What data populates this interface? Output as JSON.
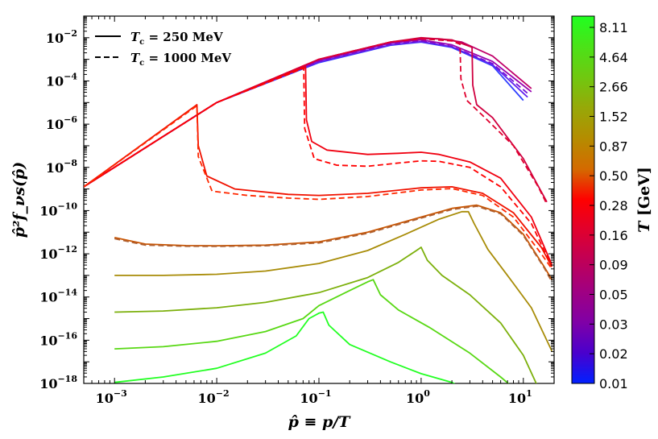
{
  "chart_data": {
    "type": "line",
    "x_scale": "log",
    "y_scale": "log",
    "xlim": [
      0.0005,
      20
    ],
    "ylim": [
      1e-18,
      0.1
    ],
    "xlabel": "p̂ ≡ p/T",
    "ylabel": "p̂²f_νs(p̂)",
    "x_ticks": [
      {
        "exp": -3,
        "label": "10",
        "sup": "−3"
      },
      {
        "exp": -2,
        "label": "10",
        "sup": "−2"
      },
      {
        "exp": -1,
        "label": "10",
        "sup": "−1"
      },
      {
        "exp": 0,
        "label": "10",
        "sup": "0"
      },
      {
        "exp": 1,
        "label": "10",
        "sup": "1"
      }
    ],
    "y_ticks": [
      {
        "exp": -2,
        "label": "10",
        "sup": "−2"
      },
      {
        "exp": -4,
        "label": "10",
        "sup": "−4"
      },
      {
        "exp": -6,
        "label": "10",
        "sup": "−6"
      },
      {
        "exp": -8,
        "label": "10",
        "sup": "−8"
      },
      {
        "exp": -10,
        "label": "10",
        "sup": "−10"
      },
      {
        "exp": -12,
        "label": "10",
        "sup": "−12"
      },
      {
        "exp": -14,
        "label": "10",
        "sup": "−14"
      },
      {
        "exp": -16,
        "label": "10",
        "sup": "−16"
      },
      {
        "exp": -18,
        "label": "10",
        "sup": "−18"
      }
    ],
    "legend": {
      "position": "top-left",
      "entries": [
        {
          "style": "solid",
          "label": "T_c = 250 MeV",
          "main": "T",
          "sub": "c",
          "rest": " = 250 MeV"
        },
        {
          "style": "dashed",
          "label": "T_c = 1000 MeV",
          "main": "T",
          "sub": "c",
          "rest": " = 1000 MeV"
        }
      ]
    },
    "colorbar": {
      "label": "T [GeV]",
      "label_main": "T",
      "label_unit": " [GeV]",
      "ticks": [
        "8.11",
        "4.64",
        "2.66",
        "1.52",
        "0.87",
        "0.50",
        "0.28",
        "0.16",
        "0.09",
        "0.05",
        "0.03",
        "0.02",
        "0.01"
      ],
      "colors": [
        "#20ff20",
        "#4be218",
        "#70c810",
        "#97a808",
        "#b58c00",
        "#d46a00",
        "#ff0000",
        "#e0002e",
        "#bf0058",
        "#a00082",
        "#8000a6",
        "#4a00cc",
        "#0020ff"
      ]
    },
    "series": [
      {
        "name": "T=0.01 solid",
        "style": "solid",
        "color": "#3040ff",
        "points": [
          [
            0.0005,
            -8.9
          ],
          [
            0.01,
            -5.0
          ],
          [
            0.1,
            -3.15
          ],
          [
            0.5,
            -2.35
          ],
          [
            1.0,
            -2.2
          ],
          [
            2.0,
            -2.45
          ],
          [
            5.0,
            -3.3
          ],
          [
            10.0,
            -4.9
          ]
        ]
      },
      {
        "name": "T=0.02 solid",
        "style": "solid",
        "color": "#6020ee",
        "points": [
          [
            0.0005,
            -8.9
          ],
          [
            0.01,
            -5.0
          ],
          [
            0.1,
            -3.12
          ],
          [
            0.5,
            -2.33
          ],
          [
            1.0,
            -2.18
          ],
          [
            2.0,
            -2.42
          ],
          [
            5.0,
            -3.25
          ],
          [
            11.0,
            -4.75
          ]
        ]
      },
      {
        "name": "T=0.03 dashed",
        "style": "dashed",
        "color": "#7010d8",
        "points": [
          [
            0.0005,
            -8.9
          ],
          [
            0.01,
            -5.0
          ],
          [
            0.1,
            -3.1
          ],
          [
            0.5,
            -2.3
          ],
          [
            1.0,
            -2.15
          ],
          [
            2.0,
            -2.4
          ],
          [
            5.0,
            -3.2
          ],
          [
            11.5,
            -4.65
          ]
        ]
      },
      {
        "name": "T=0.05 solid",
        "style": "solid",
        "color": "#9800b0",
        "points": [
          [
            0.0005,
            -8.9
          ],
          [
            0.01,
            -5.0
          ],
          [
            0.1,
            -3.05
          ],
          [
            0.5,
            -2.25
          ],
          [
            1.0,
            -2.1
          ],
          [
            2.0,
            -2.33
          ],
          [
            5.0,
            -3.1
          ],
          [
            12.0,
            -4.5
          ]
        ]
      },
      {
        "name": "T=0.09 solid",
        "style": "solid",
        "color": "#c0006a",
        "points": [
          [
            0.0005,
            -8.9
          ],
          [
            0.01,
            -5.0
          ],
          [
            0.1,
            -3.0
          ],
          [
            0.5,
            -2.2
          ],
          [
            1.0,
            -2.05
          ],
          [
            1.5,
            -2.05
          ],
          [
            2.5,
            -2.2
          ],
          [
            5.0,
            -2.85
          ],
          [
            12.0,
            -4.35
          ]
        ]
      },
      {
        "name": "T=0.16 solid (drop p~3.2)",
        "style": "solid",
        "color": "#d00040",
        "points": [
          [
            0.0005,
            -8.9
          ],
          [
            0.01,
            -5.0
          ],
          [
            0.1,
            -3.0
          ],
          [
            0.5,
            -2.2
          ],
          [
            1.0,
            -2.0
          ],
          [
            2.0,
            -2.1
          ],
          [
            3.0,
            -2.4
          ],
          [
            3.15,
            -2.45
          ],
          [
            3.2,
            -4.2
          ],
          [
            3.5,
            -5.1
          ],
          [
            5.0,
            -5.7
          ],
          [
            10.0,
            -7.6
          ],
          [
            17.0,
            -9.6
          ]
        ]
      },
      {
        "name": "T=0.16 dashed (drop p~2.5)",
        "style": "dashed",
        "color": "#e0002e",
        "points": [
          [
            0.0005,
            -8.9
          ],
          [
            0.01,
            -5.0
          ],
          [
            0.1,
            -3.0
          ],
          [
            0.5,
            -2.2
          ],
          [
            1.0,
            -2.05
          ],
          [
            2.0,
            -2.15
          ],
          [
            2.4,
            -2.3
          ],
          [
            2.45,
            -3.9
          ],
          [
            2.8,
            -4.9
          ],
          [
            4.0,
            -5.6
          ],
          [
            8.0,
            -7.0
          ],
          [
            14.0,
            -8.9
          ],
          [
            17.0,
            -9.7
          ]
        ]
      },
      {
        "name": "T=0.28 solid (drop p~0.075)",
        "style": "solid",
        "color": "#f00010",
        "points": [
          [
            0.0005,
            -8.9
          ],
          [
            0.01,
            -5.0
          ],
          [
            0.05,
            -3.65
          ],
          [
            0.074,
            -3.35
          ],
          [
            0.0755,
            -5.8
          ],
          [
            0.085,
            -6.8
          ],
          [
            0.12,
            -7.2
          ],
          [
            0.3,
            -7.4
          ],
          [
            0.6,
            -7.35
          ],
          [
            1.0,
            -7.3
          ],
          [
            1.5,
            -7.4
          ],
          [
            3.0,
            -7.75
          ],
          [
            6.0,
            -8.5
          ],
          [
            12.0,
            -10.3
          ],
          [
            19.0,
            -12.5
          ]
        ]
      },
      {
        "name": "T=0.28 dashed (drop p~0.072)",
        "style": "dashed",
        "color": "#ff0000",
        "points": [
          [
            0.0005,
            -8.9
          ],
          [
            0.01,
            -5.0
          ],
          [
            0.05,
            -3.7
          ],
          [
            0.071,
            -3.4
          ],
          [
            0.0725,
            -6.2
          ],
          [
            0.09,
            -7.6
          ],
          [
            0.15,
            -7.9
          ],
          [
            0.3,
            -7.95
          ],
          [
            0.6,
            -7.8
          ],
          [
            1.0,
            -7.7
          ],
          [
            1.5,
            -7.72
          ],
          [
            3.0,
            -8.0
          ],
          [
            6.0,
            -8.9
          ],
          [
            12.0,
            -10.6
          ],
          [
            19.0,
            -12.6
          ]
        ]
      },
      {
        "name": "T=0.50 solid (drop p~0.0065)",
        "style": "solid",
        "color": "#f01200",
        "points": [
          [
            0.0005,
            -8.9
          ],
          [
            0.0064,
            -5.1
          ],
          [
            0.0066,
            -7.0
          ],
          [
            0.008,
            -8.4
          ],
          [
            0.015,
            -9.0
          ],
          [
            0.05,
            -9.25
          ],
          [
            0.1,
            -9.3
          ],
          [
            0.3,
            -9.2
          ],
          [
            1.0,
            -8.95
          ],
          [
            2.0,
            -8.9
          ],
          [
            4.0,
            -9.2
          ],
          [
            8.0,
            -10.1
          ],
          [
            15.0,
            -11.7
          ],
          [
            19.0,
            -12.6
          ]
        ]
      },
      {
        "name": "T=0.50 dashed",
        "style": "dashed",
        "color": "#ff2800",
        "points": [
          [
            0.0005,
            -8.9
          ],
          [
            0.0064,
            -5.15
          ],
          [
            0.0066,
            -7.5
          ],
          [
            0.009,
            -9.1
          ],
          [
            0.02,
            -9.3
          ],
          [
            0.05,
            -9.42
          ],
          [
            0.1,
            -9.48
          ],
          [
            0.3,
            -9.35
          ],
          [
            1.0,
            -9.05
          ],
          [
            2.0,
            -8.98
          ],
          [
            4.0,
            -9.3
          ],
          [
            8.0,
            -10.3
          ],
          [
            15.0,
            -12.0
          ],
          [
            19.0,
            -12.7
          ]
        ]
      },
      {
        "name": "T=0.87 solid",
        "style": "solid",
        "color": "#c85400",
        "points": [
          [
            0.001,
            -11.25
          ],
          [
            0.002,
            -11.55
          ],
          [
            0.005,
            -11.62
          ],
          [
            0.01,
            -11.63
          ],
          [
            0.03,
            -11.6
          ],
          [
            0.1,
            -11.45
          ],
          [
            0.3,
            -11.0
          ],
          [
            1.0,
            -10.3
          ],
          [
            2.0,
            -9.9
          ],
          [
            3.5,
            -9.75
          ],
          [
            6.0,
            -10.1
          ],
          [
            10.0,
            -11.1
          ],
          [
            16.0,
            -12.6
          ],
          [
            19.0,
            -13.2
          ]
        ]
      },
      {
        "name": "T=0.87 dashed",
        "style": "dashed",
        "color": "#b06030",
        "points": [
          [
            0.001,
            -11.3
          ],
          [
            0.002,
            -11.6
          ],
          [
            0.005,
            -11.65
          ],
          [
            0.01,
            -11.66
          ],
          [
            0.03,
            -11.63
          ],
          [
            0.1,
            -11.5
          ],
          [
            0.3,
            -11.05
          ],
          [
            1.0,
            -10.35
          ],
          [
            2.0,
            -9.95
          ],
          [
            3.5,
            -9.8
          ],
          [
            6.0,
            -10.15
          ],
          [
            10.0,
            -11.15
          ],
          [
            16.0,
            -12.65
          ],
          [
            19.0,
            -13.3
          ]
        ]
      },
      {
        "name": "T=1.52 solid",
        "style": "solid",
        "color": "#a88c08",
        "points": [
          [
            0.001,
            -13.0
          ],
          [
            0.003,
            -13.0
          ],
          [
            0.01,
            -12.95
          ],
          [
            0.03,
            -12.8
          ],
          [
            0.1,
            -12.45
          ],
          [
            0.3,
            -11.85
          ],
          [
            0.7,
            -11.1
          ],
          [
            1.5,
            -10.4
          ],
          [
            2.5,
            -10.05
          ],
          [
            2.9,
            -10.05
          ],
          [
            3.3,
            -10.6
          ],
          [
            4.5,
            -11.8
          ],
          [
            7.0,
            -13.0
          ],
          [
            12.0,
            -14.5
          ],
          [
            19.0,
            -16.5
          ]
        ]
      },
      {
        "name": "T=2.66 solid",
        "style": "solid",
        "color": "#7cb00c",
        "points": [
          [
            0.001,
            -14.7
          ],
          [
            0.003,
            -14.65
          ],
          [
            0.01,
            -14.5
          ],
          [
            0.03,
            -14.25
          ],
          [
            0.1,
            -13.8
          ],
          [
            0.3,
            -13.1
          ],
          [
            0.6,
            -12.4
          ],
          [
            0.9,
            -11.85
          ],
          [
            1.0,
            -11.7
          ],
          [
            1.15,
            -12.3
          ],
          [
            1.6,
            -13.0
          ],
          [
            3.0,
            -13.9
          ],
          [
            6.0,
            -15.2
          ],
          [
            10.0,
            -16.7
          ],
          [
            14.0,
            -18.2
          ]
        ]
      },
      {
        "name": "T=4.64 solid",
        "style": "solid",
        "color": "#58d814",
        "points": [
          [
            0.001,
            -16.4
          ],
          [
            0.003,
            -16.3
          ],
          [
            0.01,
            -16.05
          ],
          [
            0.03,
            -15.6
          ],
          [
            0.07,
            -15.0
          ],
          [
            0.1,
            -14.4
          ],
          [
            0.2,
            -13.7
          ],
          [
            0.3,
            -13.3
          ],
          [
            0.34,
            -13.2
          ],
          [
            0.4,
            -13.9
          ],
          [
            0.6,
            -14.6
          ],
          [
            1.2,
            -15.4
          ],
          [
            3.0,
            -16.6
          ],
          [
            6.0,
            -17.7
          ],
          [
            8.0,
            -18.2
          ]
        ]
      },
      {
        "name": "T=8.11 solid",
        "style": "solid",
        "color": "#22ff22",
        "points": [
          [
            0.001,
            -17.95
          ],
          [
            0.003,
            -17.7
          ],
          [
            0.01,
            -17.3
          ],
          [
            0.03,
            -16.6
          ],
          [
            0.06,
            -15.8
          ],
          [
            0.08,
            -15.0
          ],
          [
            0.1,
            -14.75
          ],
          [
            0.11,
            -14.7
          ],
          [
            0.125,
            -15.3
          ],
          [
            0.2,
            -16.2
          ],
          [
            0.5,
            -17.0
          ],
          [
            1.0,
            -17.55
          ],
          [
            2.0,
            -17.95
          ],
          [
            2.5,
            -18.2
          ]
        ]
      }
    ]
  }
}
